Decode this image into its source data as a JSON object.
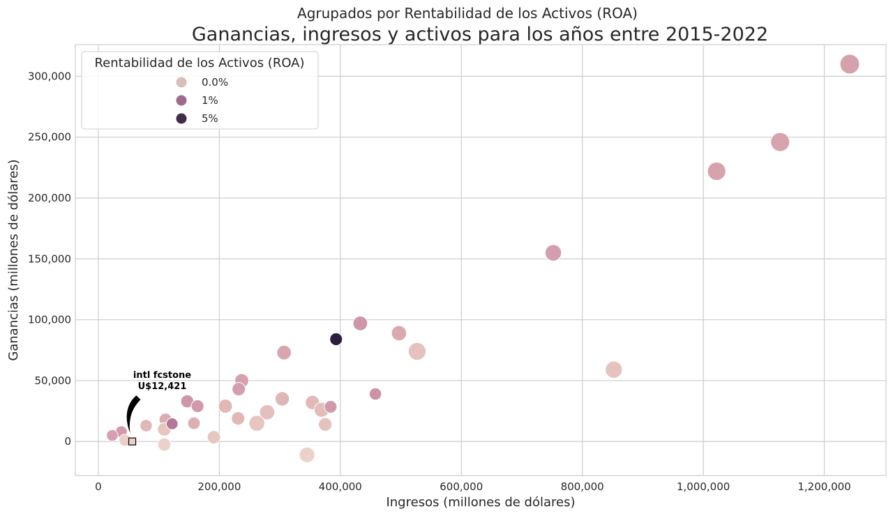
{
  "chart_data": {
    "type": "scatter",
    "suptitle": "Agrupados por Rentabilidad de los Activos (ROA)",
    "title": "Ganancias, ingresos y activos para los años entre 2015-2022",
    "xlabel": "Ingresos (millones de dólares)",
    "ylabel": "Ganancias (millones de dólares)",
    "xlim": [
      -38000,
      1302000
    ],
    "ylim": [
      -28000,
      326000
    ],
    "xticks": [
      0,
      200000,
      400000,
      600000,
      800000,
      1000000,
      1200000
    ],
    "xtick_labels": [
      "0",
      "200,000",
      "400,000",
      "600,000",
      "800,000",
      "1,000,000",
      "1,200,000"
    ],
    "yticks": [
      0,
      50000,
      100000,
      150000,
      200000,
      250000,
      300000
    ],
    "ytick_labels": [
      "0",
      "50,000",
      "100,000",
      "150,000",
      "200,000",
      "250,000",
      "300,000"
    ],
    "grid": true,
    "legend": {
      "title": "Rentabilidad de los Activos (ROA)",
      "placement": "top-left",
      "entries": [
        {
          "label": "0.0%",
          "color": "#d8bfb8"
        },
        {
          "label": "1%",
          "color": "#9e6a8e"
        },
        {
          "label": "5%",
          "color": "#3f2d4b"
        }
      ]
    },
    "points": [
      {
        "x": 1242000,
        "y": 310000,
        "size": 1.0,
        "color": "#d4a1ac"
      },
      {
        "x": 1127000,
        "y": 246000,
        "size": 0.95,
        "color": "#d7a3ad"
      },
      {
        "x": 1022000,
        "y": 222000,
        "size": 0.9,
        "color": "#d6a3ad"
      },
      {
        "x": 752000,
        "y": 155000,
        "size": 0.75,
        "color": "#d39fb0"
      },
      {
        "x": 852000,
        "y": 59000,
        "size": 0.8,
        "color": "#e6c3bf"
      },
      {
        "x": 527000,
        "y": 74000,
        "size": 0.85,
        "color": "#e6c1be"
      },
      {
        "x": 497000,
        "y": 89000,
        "size": 0.65,
        "color": "#dba9b0"
      },
      {
        "x": 433000,
        "y": 97000,
        "size": 0.6,
        "color": "#cf95a9"
      },
      {
        "x": 393000,
        "y": 84000,
        "size": 0.45,
        "color": "#2d1e3e"
      },
      {
        "x": 458000,
        "y": 39000,
        "size": 0.42,
        "color": "#ce92a8"
      },
      {
        "x": 307000,
        "y": 73000,
        "size": 0.6,
        "color": "#d9a6b0"
      },
      {
        "x": 237000,
        "y": 50000,
        "size": 0.55,
        "color": "#d6a0ae"
      },
      {
        "x": 232000,
        "y": 43000,
        "size": 0.5,
        "color": "#d39eae"
      },
      {
        "x": 304000,
        "y": 35000,
        "size": 0.58,
        "color": "#e0b7b7"
      },
      {
        "x": 279000,
        "y": 24000,
        "size": 0.65,
        "color": "#e4bfbe"
      },
      {
        "x": 262000,
        "y": 15000,
        "size": 0.7,
        "color": "#e7c5c1"
      },
      {
        "x": 210000,
        "y": 29000,
        "size": 0.55,
        "color": "#e1b8b6"
      },
      {
        "x": 231000,
        "y": 19000,
        "size": 0.5,
        "color": "#e0b7b5"
      },
      {
        "x": 354000,
        "y": 32000,
        "size": 0.58,
        "color": "#e1b9b8"
      },
      {
        "x": 369000,
        "y": 26000,
        "size": 0.62,
        "color": "#e3bdbb"
      },
      {
        "x": 384000,
        "y": 28500,
        "size": 0.45,
        "color": "#d19aab"
      },
      {
        "x": 375000,
        "y": 14000,
        "size": 0.52,
        "color": "#e6c2bf"
      },
      {
        "x": 345000,
        "y": -11000,
        "size": 0.68,
        "color": "#ebd1ca"
      },
      {
        "x": 191000,
        "y": 3500,
        "size": 0.5,
        "color": "#e7c8c0"
      },
      {
        "x": 147000,
        "y": 33000,
        "size": 0.48,
        "color": "#cf96a9"
      },
      {
        "x": 164000,
        "y": 29000,
        "size": 0.46,
        "color": "#d19aac"
      },
      {
        "x": 158000,
        "y": 15000,
        "size": 0.44,
        "color": "#dcb0b3"
      },
      {
        "x": 111000,
        "y": 18000,
        "size": 0.46,
        "color": "#dbadb2"
      },
      {
        "x": 109000,
        "y": 10000,
        "size": 0.52,
        "color": "#e7c6c0"
      },
      {
        "x": 109000,
        "y": -2500,
        "size": 0.48,
        "color": "#ebd0c9"
      },
      {
        "x": 122000,
        "y": 14500,
        "size": 0.38,
        "color": "#b27898"
      },
      {
        "x": 79000,
        "y": 13000,
        "size": 0.42,
        "color": "#e1b8b6"
      },
      {
        "x": 38000,
        "y": 8000,
        "size": 0.38,
        "color": "#d399ab"
      },
      {
        "x": 23000,
        "y": 5000,
        "size": 0.36,
        "color": "#d69fae"
      },
      {
        "x": 44000,
        "y": 1000,
        "size": 0.4,
        "color": "#ead0c8"
      }
    ],
    "highlight": {
      "x": 56000,
      "y": 0,
      "label": "intl fcstone",
      "value_label": "U$12,421"
    }
  }
}
